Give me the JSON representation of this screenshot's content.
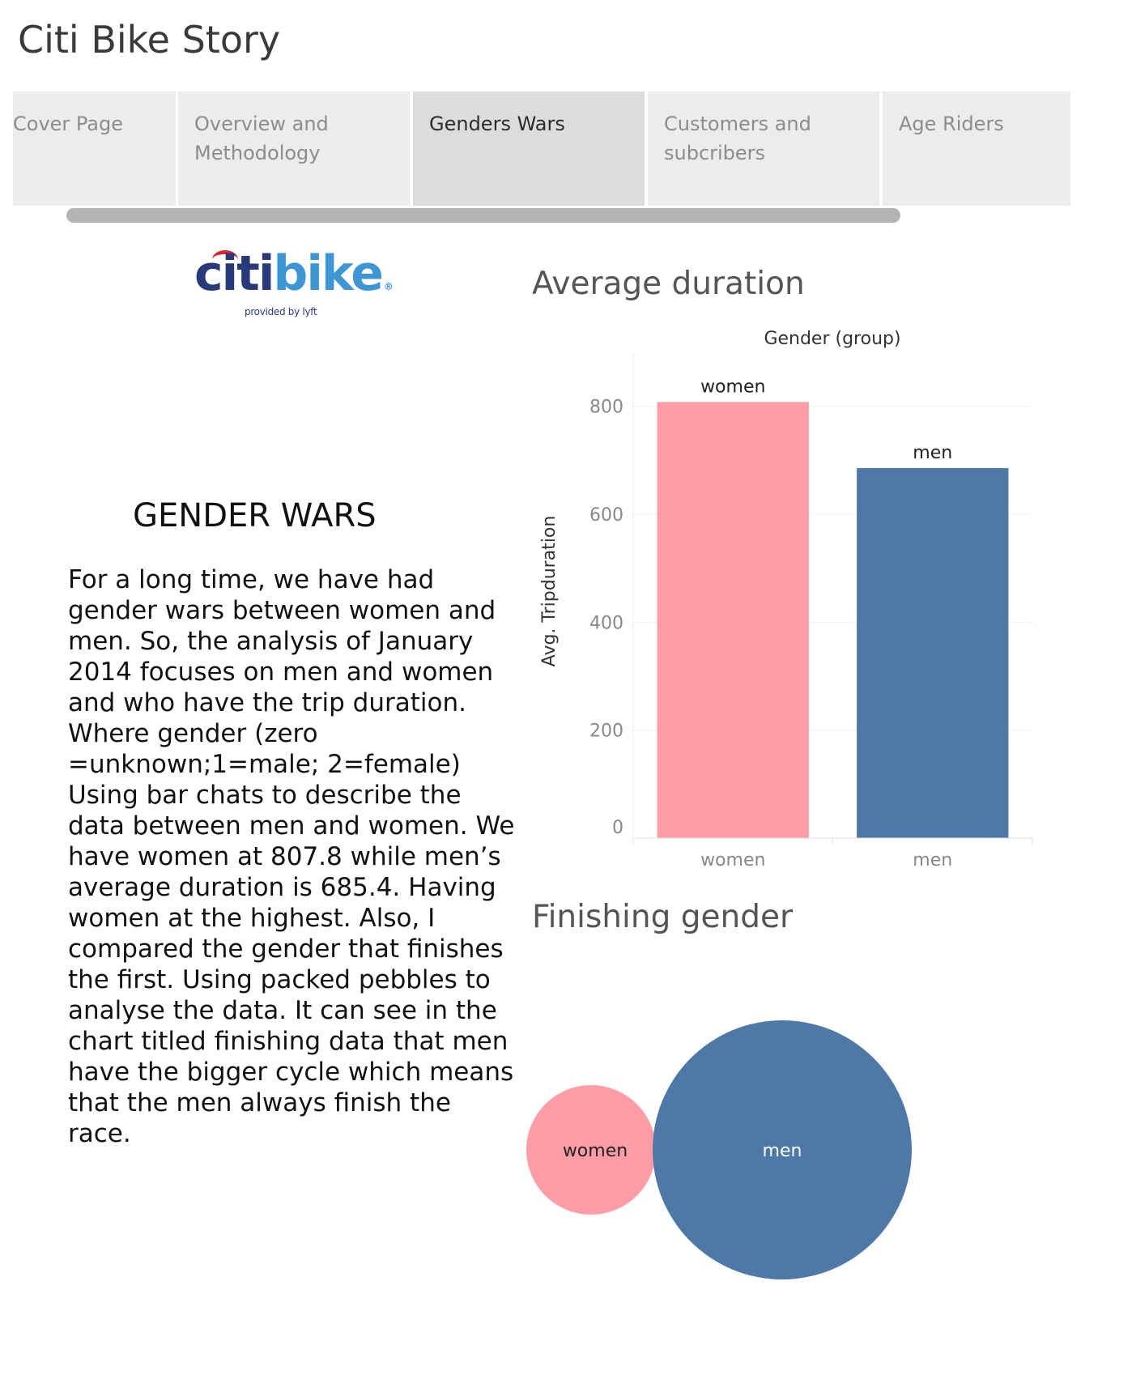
{
  "story": {
    "title": "Citi Bike Story"
  },
  "tabs": [
    {
      "lines": [
        "Cover Page"
      ],
      "active": false
    },
    {
      "lines": [
        "Overview and",
        "Methodology"
      ],
      "active": false
    },
    {
      "lines": [
        "Genders Wars"
      ],
      "active": true
    },
    {
      "lines": [
        "Customers and",
        "subcribers"
      ],
      "active": false
    },
    {
      "lines": [
        "Age Riders"
      ],
      "active": false
    }
  ],
  "logo": {
    "citi": "citi",
    "bike": "bike",
    "reg": "®",
    "sub": "provided by lyft"
  },
  "text": {
    "heading": "GENDER WARS",
    "body": "For a long time, we have had gender wars between women and men. So, the  analysis of January 2014 focuses on men and women and who have the trip duration. Where gender (zero =unknown;1=male; 2=female) Using bar chats to describe the data between men and women. We have women at 807.8 while men’s average duration is 685.4. Having women at the highest. Also, I compared the gender that finishes the first. Using packed pebbles to analyse the data. It can see in the chart titled finishing data that men have the bigger cycle which means that the men always finish the race."
  },
  "colors": {
    "women": "#ff9da7",
    "men": "#4e79a7"
  },
  "chart_data": [
    {
      "type": "bar",
      "title": "Average duration",
      "column_header": "Gender (group)",
      "categories": [
        "women",
        "men"
      ],
      "values": [
        807.8,
        685.4
      ],
      "ylabel": "Avg. Tripduration",
      "ylim": [
        0,
        900
      ],
      "yticks": [
        0,
        200,
        400,
        600,
        800
      ],
      "grid": true
    },
    {
      "type": "packed-bubbles",
      "title": "Finishing gender",
      "categories": [
        "women",
        "men"
      ],
      "relative_size": [
        0.25,
        1.0
      ]
    }
  ]
}
